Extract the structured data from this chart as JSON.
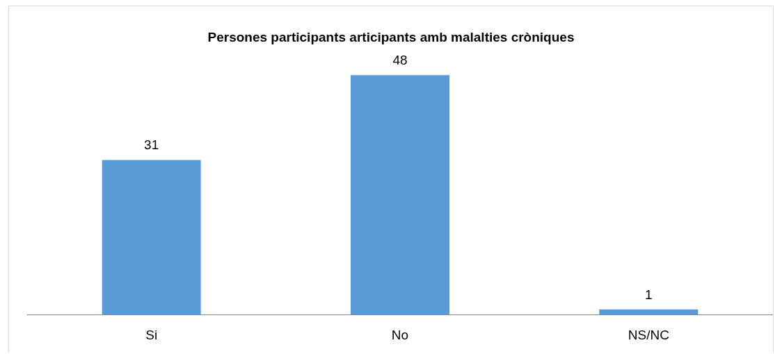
{
  "chart_data": {
    "type": "bar",
    "title": "Persones participants articipants amb malalties cròniques",
    "categories": [
      "Si",
      "No",
      "NS/NC"
    ],
    "values": [
      31,
      48,
      1
    ],
    "color": "#5b9bd5",
    "data_labels": true
  }
}
